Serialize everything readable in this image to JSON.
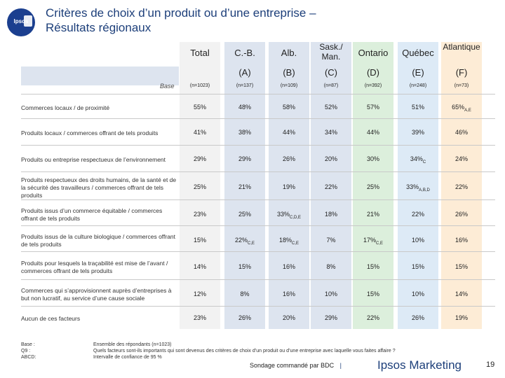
{
  "logo": {
    "text": "Ipsos"
  },
  "title": {
    "line1": "Critères de choix d’un produit ou d’une entreprise –",
    "line2": "Résultats régionaux"
  },
  "columns": [
    {
      "name": "Total",
      "letter": "",
      "base": "(n=1023)",
      "bg": "#f2f2f2"
    },
    {
      "name": "C.-B.",
      "letter": "(A)",
      "base": "(n=137)",
      "bg": "#dde4ef"
    },
    {
      "name": "Alb.",
      "letter": "(B)",
      "base": "(n=109)",
      "bg": "#dde4ef"
    },
    {
      "name": "Sask./ Man.",
      "letter": "(C)",
      "base": "(n=87)",
      "bg": "#dde4ef"
    },
    {
      "name": "Ontario",
      "letter": "(D)",
      "base": "(n=392)",
      "bg": "#dcefdc"
    },
    {
      "name": "Québec",
      "letter": "(E)",
      "base": "(n=248)",
      "bg": "#ddeaf6"
    },
    {
      "name": "Atlantique",
      "letter": "(F)",
      "base": "(n=73)",
      "bg": "#fdecd6"
    }
  ],
  "base_label": "Base",
  "rows": [
    {
      "label": "Commerces locaux / de proximité",
      "cells": [
        [
          "55%",
          ""
        ],
        [
          "48%",
          ""
        ],
        [
          "58%",
          ""
        ],
        [
          "52%",
          ""
        ],
        [
          "57%",
          ""
        ],
        [
          "51%",
          ""
        ],
        [
          "65%",
          "A,E"
        ]
      ]
    },
    {
      "label": "Produits locaux / commerces offrant de tels produits",
      "cells": [
        [
          "41%",
          ""
        ],
        [
          "38%",
          ""
        ],
        [
          "44%",
          ""
        ],
        [
          "34%",
          ""
        ],
        [
          "44%",
          ""
        ],
        [
          "39%",
          ""
        ],
        [
          "46%",
          ""
        ]
      ]
    },
    {
      "label": "Produits ou entreprise respectueux de l’environnement",
      "cells": [
        [
          "29%",
          ""
        ],
        [
          "29%",
          ""
        ],
        [
          "26%",
          ""
        ],
        [
          "20%",
          ""
        ],
        [
          "30%",
          ""
        ],
        [
          "34%",
          "C"
        ],
        [
          "24%",
          ""
        ]
      ]
    },
    {
      "label": "Produits respectueux des droits humains, de la santé et de la sécurité des travailleurs / commerces offrant de tels produits",
      "cells": [
        [
          "25%",
          ""
        ],
        [
          "21%",
          ""
        ],
        [
          "19%",
          ""
        ],
        [
          "22%",
          ""
        ],
        [
          "25%",
          ""
        ],
        [
          "33%",
          "A,B,D"
        ],
        [
          "22%",
          ""
        ]
      ]
    },
    {
      "label": "Produits issus d’un commerce équitable / commerces offrant de tels produits",
      "cells": [
        [
          "23%",
          ""
        ],
        [
          "25%",
          ""
        ],
        [
          "33%",
          "C,D,E"
        ],
        [
          "18%",
          ""
        ],
        [
          "21%",
          ""
        ],
        [
          "22%",
          ""
        ],
        [
          "26%",
          ""
        ]
      ]
    },
    {
      "label": "Produits issus de la culture biologique / commerces offrant de tels produits",
      "cells": [
        [
          "15%",
          ""
        ],
        [
          "22%",
          "C,E"
        ],
        [
          "18%",
          "C,E"
        ],
        [
          "7%",
          ""
        ],
        [
          "17%",
          "C,E"
        ],
        [
          "10%",
          ""
        ],
        [
          "16%",
          ""
        ]
      ]
    },
    {
      "label": "Produits pour lesquels la traçabilité est mise de l’avant / commerces offrant de tels produits",
      "cells": [
        [
          "14%",
          ""
        ],
        [
          "15%",
          ""
        ],
        [
          "16%",
          ""
        ],
        [
          "8%",
          ""
        ],
        [
          "15%",
          ""
        ],
        [
          "15%",
          ""
        ],
        [
          "15%",
          ""
        ]
      ]
    },
    {
      "label": "Commerces qui s’approvisionnent auprès d’entreprises à but non lucratif, au service d’une cause sociale",
      "cells": [
        [
          "12%",
          ""
        ],
        [
          "8%",
          ""
        ],
        [
          "16%",
          ""
        ],
        [
          "10%",
          ""
        ],
        [
          "15%",
          ""
        ],
        [
          "10%",
          ""
        ],
        [
          "14%",
          ""
        ]
      ]
    },
    {
      "label": "Aucun de ces facteurs",
      "cells": [
        [
          "23%",
          ""
        ],
        [
          "26%",
          ""
        ],
        [
          "20%",
          ""
        ],
        [
          "29%",
          ""
        ],
        [
          "22%",
          ""
        ],
        [
          "26%",
          ""
        ],
        [
          "19%",
          ""
        ]
      ]
    }
  ],
  "footer": {
    "labels": [
      "Base :",
      "Q9 :",
      "ABCD:"
    ],
    "texts": [
      "Ensemble des répondants (n=1023)",
      "Quels facteurs sont-ils importants qui sont devenus des critères de choix d’un produit ou d’une entreprise avec laquelle vous faites affaire ?",
      "Intervalle de confiance de 95 %"
    ],
    "brand_text": "Sondage commandé par BDC",
    "separator": "|",
    "brand_name": "Ipsos Marketing",
    "page_number": "19"
  }
}
